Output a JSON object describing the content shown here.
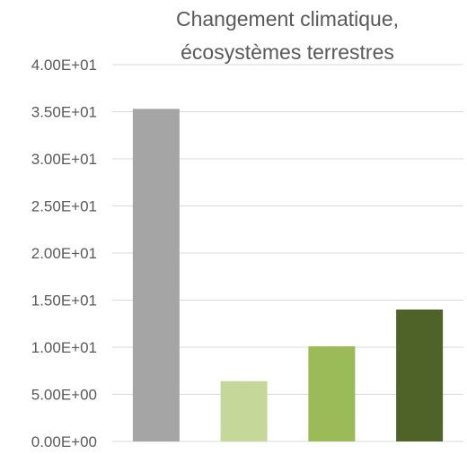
{
  "chart_data": {
    "type": "bar",
    "title_lines": [
      "Changement climatique,",
      "écosystèmes terrestres"
    ],
    "categories": [
      "",
      "",
      "",
      ""
    ],
    "values": [
      35.3,
      6.4,
      10.1,
      14.0
    ],
    "colors": [
      "#a5a5a5",
      "#c5d89a",
      "#9bbb59",
      "#4f6228"
    ],
    "ylim": [
      0,
      40
    ],
    "yticks": [
      0,
      5,
      10,
      15,
      20,
      25,
      30,
      35,
      40
    ],
    "ytick_labels": [
      "0.00E+00",
      "5.00E+00",
      "1.00E+01",
      "1.50E+01",
      "2.00E+01",
      "2.50E+01",
      "3.00E+01",
      "3.50E+01",
      "4.00E+01"
    ],
    "xlabel": "",
    "ylabel": "",
    "grid": true,
    "legend": "none"
  }
}
